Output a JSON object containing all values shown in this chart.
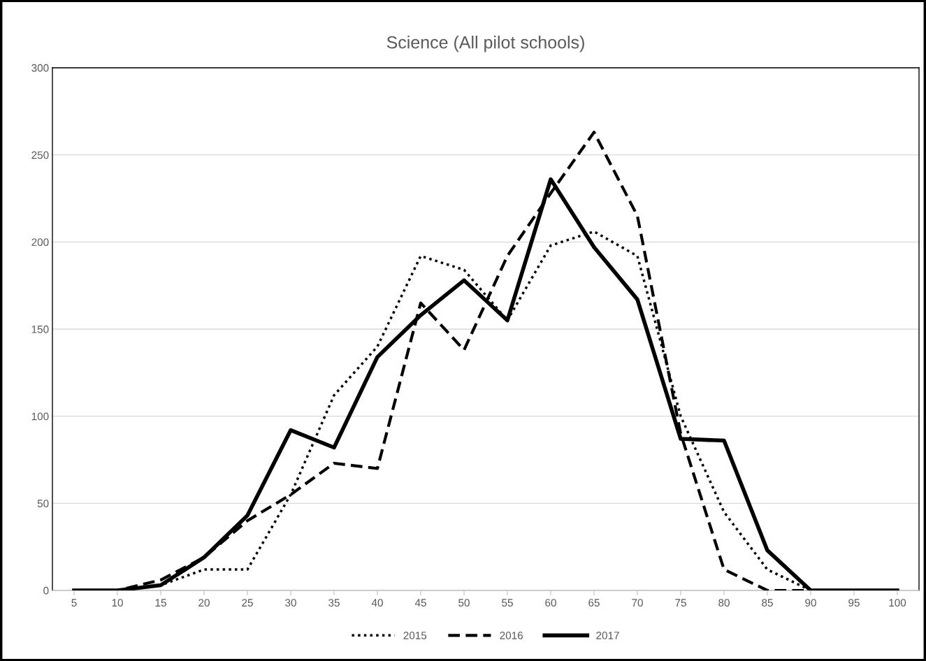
{
  "chart_data": {
    "type": "line",
    "title": "Science (All pilot schools)",
    "categories": [
      "5",
      "10",
      "15",
      "20",
      "25",
      "30",
      "35",
      "40",
      "45",
      "50",
      "55",
      "60",
      "65",
      "70",
      "75",
      "80",
      "85",
      "90",
      "95",
      "100"
    ],
    "series": [
      {
        "name": "2015",
        "color": "#000000",
        "line_style": "dotted",
        "values": [
          0,
          0,
          3,
          12,
          12,
          55,
          112,
          140,
          192,
          184,
          155,
          198,
          206,
          192,
          100,
          45,
          12,
          0,
          0,
          0
        ]
      },
      {
        "name": "2016",
        "color": "#000000",
        "line_style": "dashed",
        "values": [
          0,
          0,
          6,
          19,
          40,
          55,
          73,
          70,
          165,
          138,
          192,
          228,
          263,
          215,
          90,
          12,
          0,
          0,
          0,
          0
        ]
      },
      {
        "name": "2017",
        "color": "#000000",
        "line_style": "solid",
        "values": [
          0,
          0,
          3,
          19,
          43,
          92,
          82,
          134,
          158,
          178,
          155,
          236,
          197,
          167,
          87,
          86,
          23,
          0,
          0,
          0
        ]
      }
    ],
    "ylim": [
      0,
      300
    ],
    "yticks": [
      0,
      50,
      100,
      150,
      200,
      250,
      300
    ],
    "grid": "y",
    "legend": "bottom",
    "marker": "none"
  }
}
